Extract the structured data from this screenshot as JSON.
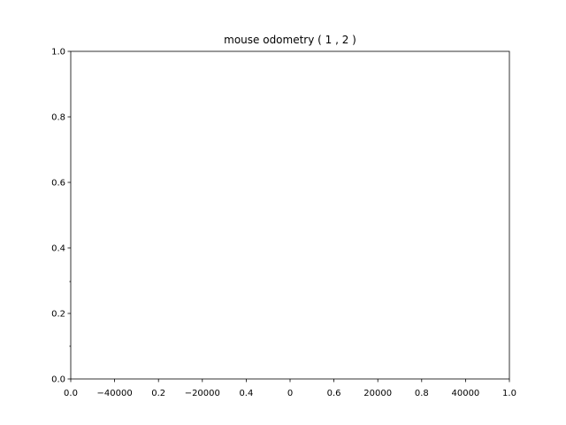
{
  "chart_data": {
    "type": "line",
    "title": "mouse odometry ( 1 , 2 )",
    "xlabel": "",
    "ylabel": "",
    "grid": false,
    "xlim": [
      0,
      1
    ],
    "ylim": [
      0,
      1
    ],
    "x": [],
    "series": [],
    "axes": {
      "x_ticks": [
        "0.0",
        "0.2",
        "0.4",
        "0.6",
        "0.8",
        "1.0"
      ],
      "y_ticks": [
        "0.0",
        "0.2",
        "0.4",
        "0.6",
        "0.8",
        "1.0"
      ],
      "overlay_x_ticks": [
        "−40000",
        "−20000",
        "0",
        "20000",
        "40000"
      ]
    }
  }
}
